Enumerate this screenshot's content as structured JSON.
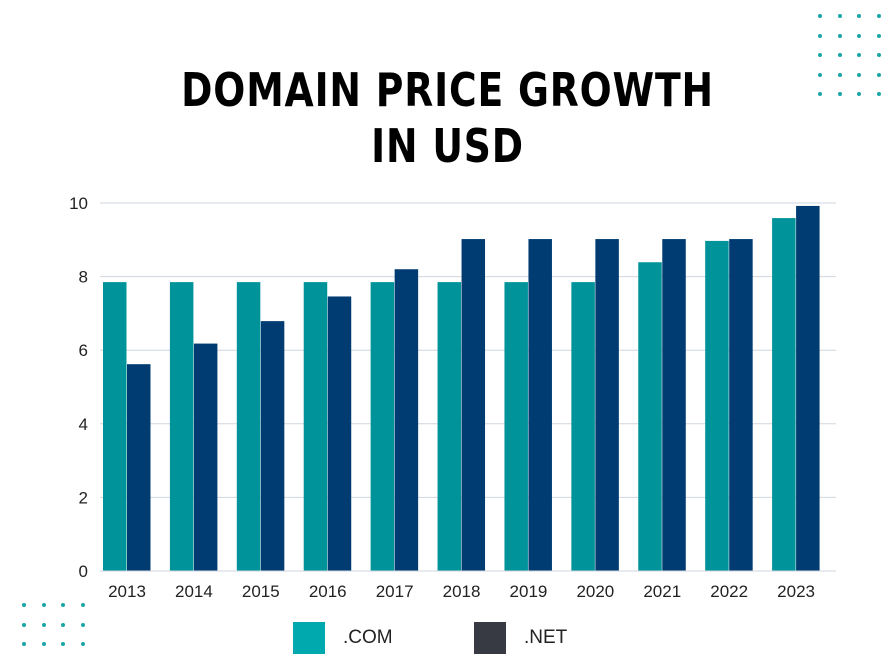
{
  "title_lines": [
    "DOMAIN PRICE GROWTH",
    "IN USD"
  ],
  "colors": {
    "com": "#00939a",
    "net": "#003c72",
    "legend_com": "#00a9ad",
    "legend_net": "#373a42",
    "grid": "#cfd6dd",
    "dots": "#1aa6a6"
  },
  "legend": [
    {
      "label": ".COM",
      "color_key": "legend_com"
    },
    {
      "label": ".NET",
      "color_key": "legend_net"
    }
  ],
  "chart_data": {
    "type": "bar",
    "title": "DOMAIN PRICE GROWTH IN USD",
    "categories": [
      "2013",
      "2014",
      "2015",
      "2016",
      "2017",
      "2018",
      "2019",
      "2020",
      "2021",
      "2022",
      "2023"
    ],
    "series": [
      {
        "name": ".COM",
        "values": [
          7.85,
          7.85,
          7.85,
          7.85,
          7.85,
          7.85,
          7.85,
          7.85,
          8.39,
          8.97,
          9.59
        ]
      },
      {
        "name": ".NET",
        "values": [
          5.62,
          6.18,
          6.79,
          7.46,
          8.2,
          9.02,
          9.02,
          9.02,
          9.02,
          9.02,
          9.92
        ]
      }
    ],
    "yticks": [
      0,
      2,
      4,
      6,
      8,
      10
    ],
    "ylim": [
      0,
      10
    ],
    "grid": true,
    "legend_position": "bottom",
    "xlabel": "",
    "ylabel": ""
  }
}
